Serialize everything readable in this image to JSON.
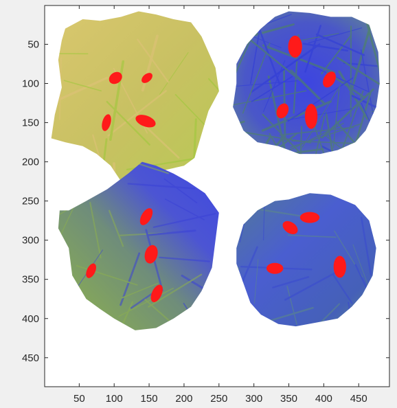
{
  "chart_data": {
    "type": "image",
    "title": "",
    "xlabel": "",
    "ylabel": "",
    "xlim": [
      0.5,
      494
    ],
    "ylim": [
      0.5,
      487
    ],
    "y_reversed": true,
    "x_ticks": [
      50,
      100,
      150,
      200,
      250,
      300,
      350,
      400,
      450
    ],
    "y_ticks": [
      50,
      100,
      150,
      200,
      250,
      300,
      350,
      400,
      450
    ],
    "x_tick_labels": [
      "50",
      "100",
      "150",
      "200",
      "250",
      "300",
      "350",
      "400",
      "450"
    ],
    "y_tick_labels": [
      "50",
      "100",
      "150",
      "200",
      "250",
      "300",
      "350",
      "400",
      "450"
    ],
    "grid": false,
    "colors": {
      "axes_background": "#ffffff",
      "figure_background": "#f0f0f0",
      "axis": "#262626",
      "marker": "#ff1a1a",
      "leaf_yellow": "#c8c865",
      "leaf_green": "#8fbf3a",
      "leaf_blue": "#4a52d4",
      "leaf_teal": "#4f7a8a"
    },
    "panels": [
      {
        "name": "yellow-leaf-cluster",
        "style": "yellow",
        "outline": [
          [
            30,
            30
          ],
          [
            55,
            18
          ],
          [
            80,
            20
          ],
          [
            110,
            15
          ],
          [
            135,
            8
          ],
          [
            160,
            12
          ],
          [
            185,
            18
          ],
          [
            210,
            22
          ],
          [
            225,
            40
          ],
          [
            235,
            60
          ],
          [
            245,
            80
          ],
          [
            250,
            110
          ],
          [
            235,
            135
          ],
          [
            225,
            165
          ],
          [
            215,
            195
          ],
          [
            200,
            205
          ],
          [
            175,
            210
          ],
          [
            140,
            220
          ],
          [
            110,
            225
          ],
          [
            95,
            205
          ],
          [
            75,
            190
          ],
          [
            55,
            180
          ],
          [
            30,
            175
          ],
          [
            10,
            170
          ],
          [
            15,
            140
          ],
          [
            25,
            105
          ],
          [
            20,
            70
          ],
          [
            25,
            45
          ]
        ],
        "markers": [
          [
            102,
            93,
            10,
            7,
            -35
          ],
          [
            147,
            93,
            9,
            5,
            -40
          ],
          [
            89,
            150,
            6,
            11,
            15
          ],
          [
            145,
            148,
            15,
            7,
            20
          ]
        ]
      },
      {
        "name": "blue-sticks-cluster",
        "style": "sticks",
        "outline": [
          [
            275,
            75
          ],
          [
            290,
            50
          ],
          [
            310,
            30
          ],
          [
            330,
            15
          ],
          [
            350,
            8
          ],
          [
            380,
            10
          ],
          [
            410,
            15
          ],
          [
            440,
            15
          ],
          [
            465,
            25
          ],
          [
            478,
            60
          ],
          [
            480,
            100
          ],
          [
            475,
            130
          ],
          [
            460,
            160
          ],
          [
            445,
            175
          ],
          [
            420,
            185
          ],
          [
            395,
            190
          ],
          [
            365,
            190
          ],
          [
            335,
            180
          ],
          [
            305,
            175
          ],
          [
            285,
            160
          ],
          [
            270,
            130
          ],
          [
            275,
            100
          ]
        ],
        "markers": [
          [
            359,
            53,
            10,
            14,
            0
          ],
          [
            408,
            95,
            8,
            11,
            30
          ],
          [
            341,
            135,
            8,
            10,
            25
          ],
          [
            382,
            142,
            9,
            16,
            0
          ]
        ]
      },
      {
        "name": "green-blue-leaf-cluster",
        "style": "greenblue",
        "outline": [
          [
            35,
            262
          ],
          [
            60,
            250
          ],
          [
            90,
            235
          ],
          [
            120,
            215
          ],
          [
            140,
            200
          ],
          [
            160,
            205
          ],
          [
            185,
            215
          ],
          [
            205,
            225
          ],
          [
            230,
            240
          ],
          [
            250,
            265
          ],
          [
            245,
            300
          ],
          [
            240,
            335
          ],
          [
            225,
            365
          ],
          [
            210,
            385
          ],
          [
            185,
            400
          ],
          [
            160,
            412
          ],
          [
            130,
            415
          ],
          [
            100,
            400
          ],
          [
            80,
            388
          ],
          [
            60,
            375
          ],
          [
            40,
            345
          ],
          [
            35,
            310
          ],
          [
            20,
            285
          ],
          [
            22,
            262
          ]
        ],
        "markers": [
          [
            146,
            270,
            7,
            12,
            30
          ],
          [
            153,
            318,
            9,
            12,
            15
          ],
          [
            67,
            339,
            6,
            10,
            25
          ],
          [
            161,
            368,
            7,
            12,
            25
          ]
        ]
      },
      {
        "name": "blue-teal-leaf-cluster",
        "style": "blueteal",
        "outline": [
          [
            275,
            310
          ],
          [
            285,
            280
          ],
          [
            305,
            262
          ],
          [
            330,
            250
          ],
          [
            350,
            248
          ],
          [
            380,
            240
          ],
          [
            410,
            242
          ],
          [
            445,
            255
          ],
          [
            465,
            275
          ],
          [
            475,
            310
          ],
          [
            470,
            345
          ],
          [
            455,
            370
          ],
          [
            440,
            385
          ],
          [
            420,
            400
          ],
          [
            390,
            405
          ],
          [
            360,
            410
          ],
          [
            335,
            407
          ],
          [
            310,
            395
          ],
          [
            295,
            380
          ],
          [
            285,
            355
          ],
          [
            275,
            330
          ]
        ],
        "markers": [
          [
            380,
            271,
            14,
            7,
            0
          ],
          [
            352,
            284,
            12,
            7,
            35
          ],
          [
            330,
            336,
            12,
            7,
            0
          ],
          [
            423,
            334,
            9,
            14,
            0
          ]
        ]
      }
    ]
  }
}
